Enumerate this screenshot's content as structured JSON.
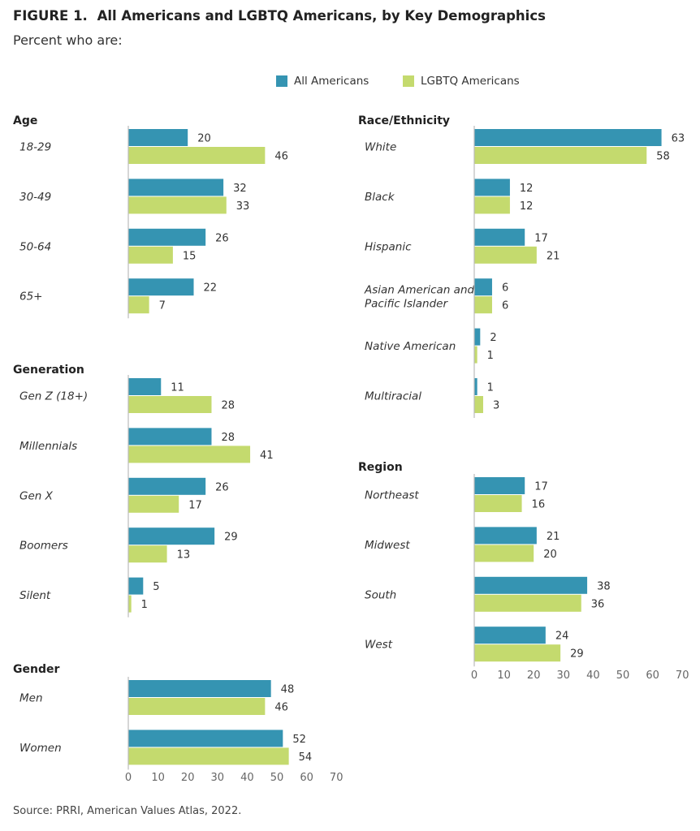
{
  "title": {
    "number": "FIGURE 1.",
    "text": "All Americans and LGBTQ Americans, by Key Demographics"
  },
  "subtitle": "Percent who are:",
  "legend": [
    {
      "name": "All Americans",
      "color": "#3594b2"
    },
    {
      "name": "LGBTQ Americans",
      "color": "#c4da6e"
    }
  ],
  "source": "Source: PRRI, American Values Atlas, 2022.",
  "chart_data": [
    {
      "type": "bar",
      "orientation": "horizontal",
      "title": "Age",
      "categories": [
        "18-29",
        "30-49",
        "50-64",
        "65+"
      ],
      "series": [
        {
          "name": "All Americans",
          "values": [
            20,
            32,
            26,
            22
          ]
        },
        {
          "name": "LGBTQ Americans",
          "values": [
            46,
            33,
            15,
            7
          ]
        }
      ],
      "xlim": [
        0,
        70
      ]
    },
    {
      "type": "bar",
      "orientation": "horizontal",
      "title": "Generation",
      "categories": [
        "Gen Z (18+)",
        "Millennials",
        "Gen X",
        "Boomers",
        "Silent"
      ],
      "series": [
        {
          "name": "All Americans",
          "values": [
            11,
            28,
            26,
            29,
            5
          ]
        },
        {
          "name": "LGBTQ Americans",
          "values": [
            28,
            41,
            17,
            13,
            1
          ]
        }
      ],
      "xlim": [
        0,
        70
      ]
    },
    {
      "type": "bar",
      "orientation": "horizontal",
      "title": "Gender",
      "categories": [
        "Men",
        "Women"
      ],
      "series": [
        {
          "name": "All Americans",
          "values": [
            48,
            52
          ]
        },
        {
          "name": "LGBTQ Americans",
          "values": [
            46,
            54
          ]
        }
      ],
      "xlim": [
        0,
        70
      ],
      "xticks": [
        0,
        10,
        20,
        30,
        40,
        50,
        60,
        70
      ]
    },
    {
      "type": "bar",
      "orientation": "horizontal",
      "title": "Race/Ethnicity",
      "categories": [
        "White",
        "Black",
        "Hispanic",
        "Asian American and Pacific Islander",
        "Native American",
        "Multiracial"
      ],
      "series": [
        {
          "name": "All Americans",
          "values": [
            63,
            12,
            17,
            6,
            2,
            1
          ]
        },
        {
          "name": "LGBTQ Americans",
          "values": [
            58,
            12,
            21,
            6,
            1,
            3
          ]
        }
      ],
      "xlim": [
        0,
        70
      ]
    },
    {
      "type": "bar",
      "orientation": "horizontal",
      "title": "Region",
      "categories": [
        "Northeast",
        "Midwest",
        "South",
        "West"
      ],
      "series": [
        {
          "name": "All Americans",
          "values": [
            17,
            21,
            38,
            24
          ]
        },
        {
          "name": "LGBTQ Americans",
          "values": [
            16,
            20,
            36,
            29
          ]
        }
      ],
      "xlim": [
        0,
        70
      ],
      "xticks": [
        0,
        10,
        20,
        30,
        40,
        50,
        60,
        70
      ]
    }
  ]
}
